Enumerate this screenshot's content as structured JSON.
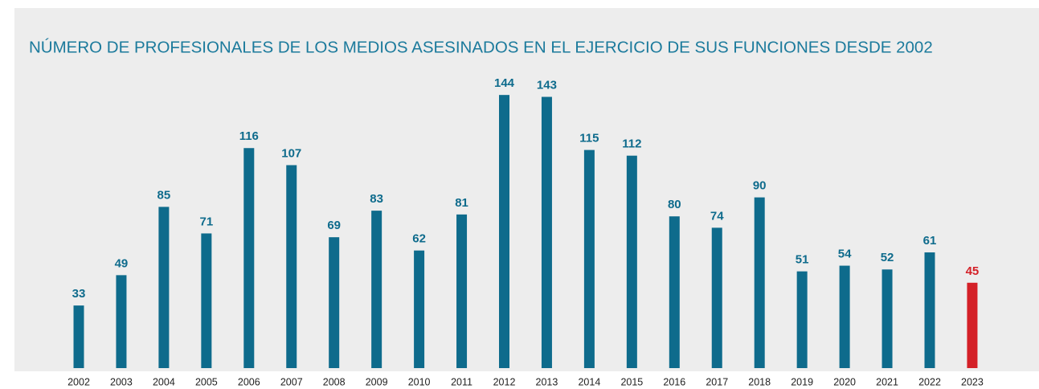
{
  "chart_data": {
    "type": "bar",
    "title": "NÚMERO DE PROFESIONALES DE LOS MEDIOS ASESINADOS EN EL EJERCICIO DE SUS FUNCIONES DESDE 2002",
    "categories": [
      "2002",
      "2003",
      "2004",
      "2005",
      "2006",
      "2007",
      "2008",
      "2009",
      "2010",
      "2011",
      "2012",
      "2013",
      "2014",
      "2015",
      "2016",
      "2017",
      "2018",
      "2019",
      "2020",
      "2021",
      "2022",
      "2023"
    ],
    "values": [
      33,
      49,
      85,
      71,
      116,
      107,
      69,
      83,
      62,
      81,
      144,
      143,
      115,
      112,
      80,
      74,
      90,
      51,
      54,
      52,
      61,
      45
    ],
    "colors": [
      "#0e6b8c",
      "#0e6b8c",
      "#0e6b8c",
      "#0e6b8c",
      "#0e6b8c",
      "#0e6b8c",
      "#0e6b8c",
      "#0e6b8c",
      "#0e6b8c",
      "#0e6b8c",
      "#0e6b8c",
      "#0e6b8c",
      "#0e6b8c",
      "#0e6b8c",
      "#0e6b8c",
      "#0e6b8c",
      "#0e6b8c",
      "#0e6b8c",
      "#0e6b8c",
      "#0e6b8c",
      "#0e6b8c",
      "#d42027"
    ]
  }
}
